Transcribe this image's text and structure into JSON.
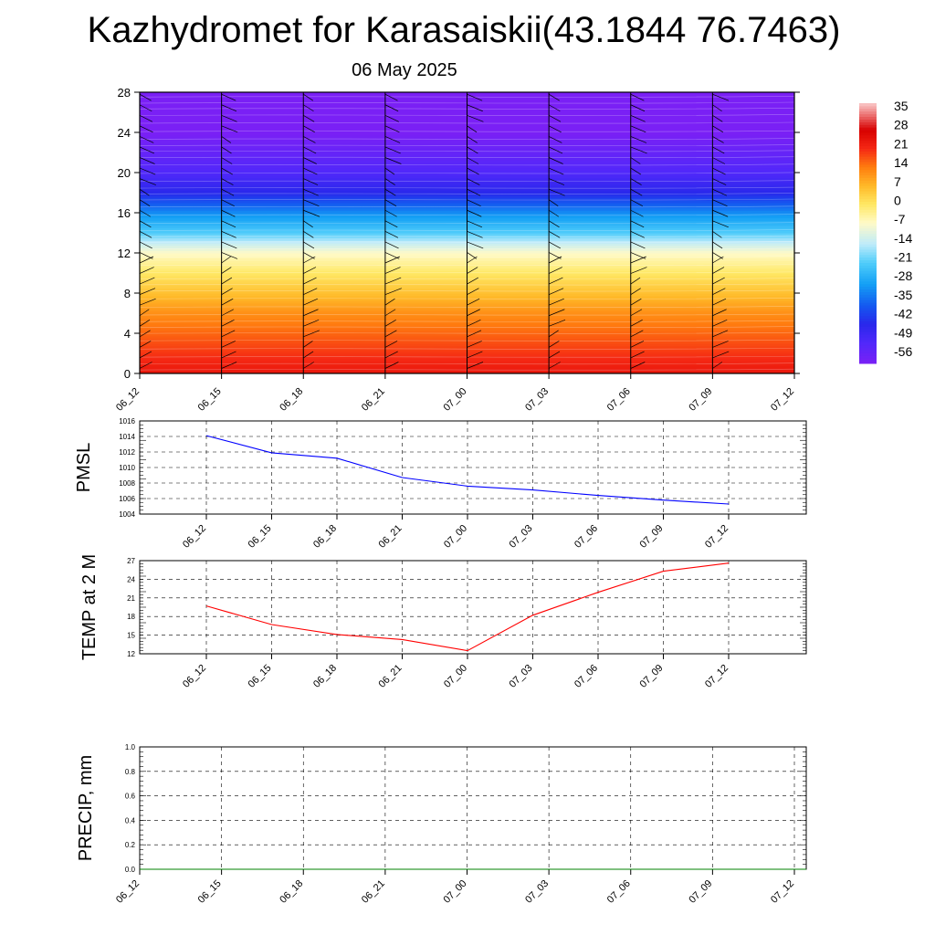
{
  "header": {
    "title": "Kazhydromet for Karasaiskii(43.1844 76.7463)",
    "date": "06 May 2025"
  },
  "chart_data": [
    {
      "type": "heatmap",
      "name": "cross-section",
      "x_ticks": [
        "06_12",
        "06_15",
        "06_18",
        "06_21",
        "07_00",
        "07_03",
        "07_06",
        "07_09",
        "07_12"
      ],
      "y_ticks": [
        0,
        4,
        8,
        12,
        16,
        20,
        24,
        28
      ],
      "ylim": [
        0,
        28
      ],
      "colorbar_labels": [
        35,
        28,
        21,
        14,
        7,
        0,
        -7,
        -14,
        -21,
        -28,
        -35,
        -42,
        -49,
        -56
      ],
      "colorbar_range": [
        -60,
        38
      ],
      "temperature_profile": [
        {
          "level": 0,
          "value": 24
        },
        {
          "level": 2,
          "value": 20
        },
        {
          "level": 4,
          "value": 16
        },
        {
          "level": 6,
          "value": 12
        },
        {
          "level": 8,
          "value": 6
        },
        {
          "level": 10,
          "value": 0
        },
        {
          "level": 12,
          "value": -7
        },
        {
          "level": 13,
          "value": -14
        },
        {
          "level": 14,
          "value": -22
        },
        {
          "level": 16,
          "value": -32
        },
        {
          "level": 18,
          "value": -45
        },
        {
          "level": 20,
          "value": -52
        },
        {
          "level": 22,
          "value": -56
        },
        {
          "level": 24,
          "value": -60
        },
        {
          "level": 28,
          "value": -60
        }
      ],
      "wind_barbs": true,
      "colors": {
        "cold": "#7b22f5",
        "cool": "#22aaf0",
        "neutral": "#fffacd",
        "warm": "#ff8a00",
        "hot": "#e20000"
      }
    },
    {
      "type": "line",
      "ylabel": "PMSL",
      "categories": [
        "06_12",
        "06_15",
        "06_18",
        "06_21",
        "07_00",
        "07_03",
        "07_06",
        "07_09",
        "07_12"
      ],
      "values": [
        1014.1,
        1011.9,
        1011.2,
        1008.7,
        1007.6,
        1007.1,
        1006.4,
        1005.8,
        1005.3
      ],
      "ylim": [
        1004,
        1016
      ],
      "y_ticks": [
        1004,
        1006,
        1008,
        1010,
        1012,
        1014,
        1016
      ],
      "grid": true,
      "color": "#0000ff"
    },
    {
      "type": "line",
      "ylabel": "TEMP at 2 M",
      "categories": [
        "06_12",
        "06_15",
        "06_18",
        "06_21",
        "07_00",
        "07_03",
        "07_06",
        "07_09",
        "07_12"
      ],
      "values": [
        19.7,
        16.7,
        15.1,
        14.3,
        12.5,
        18.2,
        21.9,
        25.3,
        26.6
      ],
      "ylim": [
        12,
        27
      ],
      "y_ticks": [
        12,
        15,
        18,
        21,
        24,
        27
      ],
      "grid": true,
      "color": "#ff0000"
    },
    {
      "type": "line",
      "ylabel": "PRECIP, mm",
      "categories": [
        "06_12",
        "06_15",
        "06_18",
        "06_21",
        "07_00",
        "07_03",
        "07_06",
        "07_09",
        "07_12"
      ],
      "values": [
        0,
        0,
        0,
        0,
        0,
        0,
        0,
        0,
        0
      ],
      "ylim": [
        0,
        1
      ],
      "y_ticks": [
        "0.0",
        "0.2",
        "0.4",
        "0.6",
        "0.8",
        "1.0"
      ],
      "grid": true,
      "color": "#008000"
    }
  ]
}
